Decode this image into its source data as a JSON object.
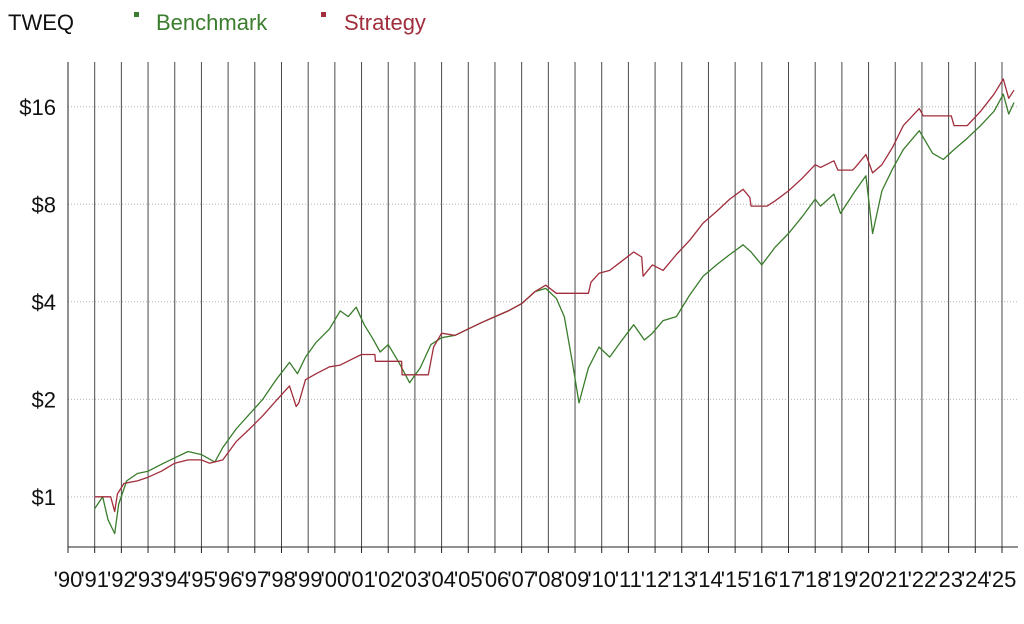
{
  "chart_data": {
    "type": "line",
    "title": "TWEQ",
    "xlabel": "",
    "ylabel": "",
    "y_scale": "log2",
    "ylim": [
      0.7,
      22
    ],
    "xlim": [
      1990,
      2025.6
    ],
    "x_tick_labels": [
      "'90",
      "'91",
      "'92",
      "'93",
      "'94",
      "'95",
      "'96",
      "'97",
      "'98",
      "'99",
      "'00",
      "'01",
      "'02",
      "'03",
      "'04",
      "'05",
      "'06",
      "'07",
      "'08",
      "'09",
      "'10",
      "'11",
      "'12",
      "'13",
      "'14",
      "'15",
      "'16",
      "'17",
      "'18",
      "'19",
      "'20",
      "'21",
      "'22",
      "'23",
      "'24",
      "'25"
    ],
    "x_tick_values": [
      1990,
      1991,
      1992,
      1993,
      1994,
      1995,
      1996,
      1997,
      1998,
      1999,
      2000,
      2001,
      2002,
      2003,
      2004,
      2005,
      2006,
      2007,
      2008,
      2009,
      2010,
      2011,
      2012,
      2013,
      2014,
      2015,
      2016,
      2017,
      2018,
      2019,
      2020,
      2021,
      2022,
      2023,
      2024,
      2025
    ],
    "y_tick_labels": [
      "$1",
      "$2",
      "$4",
      "$8",
      "$16"
    ],
    "y_tick_values": [
      1,
      2,
      4,
      8,
      16
    ],
    "grid": {
      "x": true,
      "y": true
    },
    "legend_position": "top-left",
    "series": [
      {
        "name": "Benchmark",
        "color": "#3a7d2c",
        "points": [
          [
            1991.0,
            0.92
          ],
          [
            1991.3,
            1.0
          ],
          [
            1991.5,
            0.85
          ],
          [
            1991.75,
            0.77
          ],
          [
            1991.9,
            0.95
          ],
          [
            1992.2,
            1.12
          ],
          [
            1992.6,
            1.18
          ],
          [
            1993.0,
            1.2
          ],
          [
            1993.5,
            1.26
          ],
          [
            1994.0,
            1.32
          ],
          [
            1994.5,
            1.38
          ],
          [
            1995.0,
            1.35
          ],
          [
            1995.5,
            1.28
          ],
          [
            1995.8,
            1.42
          ],
          [
            1996.3,
            1.62
          ],
          [
            1996.8,
            1.8
          ],
          [
            1997.3,
            2.0
          ],
          [
            1997.8,
            2.3
          ],
          [
            1998.3,
            2.6
          ],
          [
            1998.6,
            2.4
          ],
          [
            1998.9,
            2.7
          ],
          [
            1999.3,
            3.0
          ],
          [
            1999.8,
            3.3
          ],
          [
            2000.2,
            3.75
          ],
          [
            2000.5,
            3.6
          ],
          [
            2000.8,
            3.85
          ],
          [
            2001.1,
            3.4
          ],
          [
            2001.4,
            3.1
          ],
          [
            2001.7,
            2.8
          ],
          [
            2002.0,
            2.95
          ],
          [
            2002.4,
            2.6
          ],
          [
            2002.8,
            2.25
          ],
          [
            2003.2,
            2.5
          ],
          [
            2003.6,
            2.95
          ],
          [
            2004.0,
            3.1
          ],
          [
            2004.5,
            3.15
          ],
          [
            2005.0,
            3.3
          ],
          [
            2005.5,
            3.45
          ],
          [
            2006.0,
            3.6
          ],
          [
            2006.5,
            3.75
          ],
          [
            2007.0,
            3.95
          ],
          [
            2007.5,
            4.3
          ],
          [
            2007.9,
            4.4
          ],
          [
            2008.3,
            4.1
          ],
          [
            2008.6,
            3.6
          ],
          [
            2008.9,
            2.6
          ],
          [
            2009.15,
            1.95
          ],
          [
            2009.5,
            2.5
          ],
          [
            2009.9,
            2.9
          ],
          [
            2010.3,
            2.7
          ],
          [
            2010.7,
            3.0
          ],
          [
            2011.2,
            3.4
          ],
          [
            2011.6,
            3.05
          ],
          [
            2011.9,
            3.2
          ],
          [
            2012.3,
            3.5
          ],
          [
            2012.8,
            3.6
          ],
          [
            2013.3,
            4.2
          ],
          [
            2013.8,
            4.8
          ],
          [
            2014.3,
            5.2
          ],
          [
            2014.8,
            5.6
          ],
          [
            2015.3,
            6.0
          ],
          [
            2015.6,
            5.7
          ],
          [
            2016.0,
            5.2
          ],
          [
            2016.5,
            5.9
          ],
          [
            2017.0,
            6.5
          ],
          [
            2017.5,
            7.3
          ],
          [
            2018.0,
            8.3
          ],
          [
            2018.2,
            7.9
          ],
          [
            2018.7,
            8.6
          ],
          [
            2018.95,
            7.5
          ],
          [
            2019.5,
            8.8
          ],
          [
            2019.9,
            9.8
          ],
          [
            2020.15,
            6.5
          ],
          [
            2020.5,
            8.8
          ],
          [
            2020.9,
            10.3
          ],
          [
            2021.3,
            11.8
          ],
          [
            2021.9,
            13.5
          ],
          [
            2022.4,
            11.5
          ],
          [
            2022.8,
            11.0
          ],
          [
            2023.2,
            11.8
          ],
          [
            2023.7,
            12.8
          ],
          [
            2024.2,
            14.0
          ],
          [
            2024.7,
            15.5
          ],
          [
            2025.05,
            17.5
          ],
          [
            2025.25,
            15.2
          ],
          [
            2025.45,
            16.5
          ]
        ]
      },
      {
        "name": "Strategy",
        "color": "#a12e3c",
        "points": [
          [
            1991.0,
            1.0
          ],
          [
            1991.6,
            1.0
          ],
          [
            1991.75,
            0.9
          ],
          [
            1991.85,
            1.02
          ],
          [
            1992.1,
            1.1
          ],
          [
            1992.6,
            1.12
          ],
          [
            1993.0,
            1.15
          ],
          [
            1993.5,
            1.2
          ],
          [
            1994.0,
            1.27
          ],
          [
            1994.5,
            1.3
          ],
          [
            1995.0,
            1.3
          ],
          [
            1995.3,
            1.27
          ],
          [
            1995.8,
            1.3
          ],
          [
            1996.3,
            1.48
          ],
          [
            1996.8,
            1.62
          ],
          [
            1997.3,
            1.78
          ],
          [
            1997.8,
            1.98
          ],
          [
            1998.3,
            2.2
          ],
          [
            1998.55,
            1.9
          ],
          [
            1998.65,
            1.95
          ],
          [
            1998.9,
            2.3
          ],
          [
            1999.3,
            2.4
          ],
          [
            1999.8,
            2.52
          ],
          [
            2000.2,
            2.55
          ],
          [
            2000.6,
            2.65
          ],
          [
            2001.0,
            2.75
          ],
          [
            2001.5,
            2.75
          ],
          [
            2001.52,
            2.62
          ],
          [
            2002.0,
            2.62
          ],
          [
            2002.5,
            2.62
          ],
          [
            2002.52,
            2.38
          ],
          [
            2003.0,
            2.38
          ],
          [
            2003.5,
            2.38
          ],
          [
            2003.7,
            2.9
          ],
          [
            2004.0,
            3.2
          ],
          [
            2004.5,
            3.15
          ],
          [
            2005.0,
            3.3
          ],
          [
            2005.5,
            3.45
          ],
          [
            2006.0,
            3.6
          ],
          [
            2006.5,
            3.75
          ],
          [
            2007.0,
            3.95
          ],
          [
            2007.5,
            4.3
          ],
          [
            2007.9,
            4.5
          ],
          [
            2008.3,
            4.25
          ],
          [
            2008.35,
            4.25
          ],
          [
            2009.5,
            4.25
          ],
          [
            2009.6,
            4.6
          ],
          [
            2009.9,
            4.9
          ],
          [
            2010.3,
            5.0
          ],
          [
            2010.7,
            5.3
          ],
          [
            2011.2,
            5.7
          ],
          [
            2011.5,
            5.5
          ],
          [
            2011.55,
            4.8
          ],
          [
            2011.9,
            5.2
          ],
          [
            2012.3,
            5.0
          ],
          [
            2012.8,
            5.6
          ],
          [
            2013.3,
            6.2
          ],
          [
            2013.8,
            7.0
          ],
          [
            2014.3,
            7.6
          ],
          [
            2014.8,
            8.3
          ],
          [
            2015.3,
            8.9
          ],
          [
            2015.55,
            8.4
          ],
          [
            2015.6,
            7.9
          ],
          [
            2016.2,
            7.9
          ],
          [
            2016.5,
            8.2
          ],
          [
            2017.0,
            8.8
          ],
          [
            2017.5,
            9.6
          ],
          [
            2018.0,
            10.6
          ],
          [
            2018.2,
            10.4
          ],
          [
            2018.7,
            10.9
          ],
          [
            2018.85,
            10.2
          ],
          [
            2019.4,
            10.2
          ],
          [
            2019.5,
            10.4
          ],
          [
            2019.9,
            11.4
          ],
          [
            2020.15,
            10.0
          ],
          [
            2020.5,
            10.6
          ],
          [
            2020.9,
            12.0
          ],
          [
            2021.3,
            14.0
          ],
          [
            2021.9,
            15.8
          ],
          [
            2022.05,
            15.0
          ],
          [
            2023.1,
            15.0
          ],
          [
            2023.2,
            14.0
          ],
          [
            2023.7,
            14.0
          ],
          [
            2024.2,
            15.5
          ],
          [
            2024.7,
            17.5
          ],
          [
            2025.05,
            19.5
          ],
          [
            2025.25,
            17.0
          ],
          [
            2025.45,
            18.0
          ]
        ]
      }
    ]
  }
}
